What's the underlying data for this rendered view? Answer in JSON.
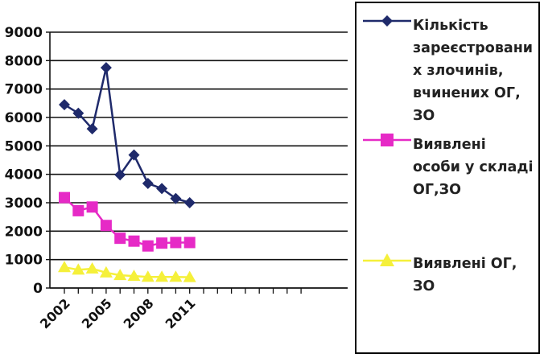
{
  "chart_data": {
    "type": "line",
    "x": [
      2002,
      2003,
      2004,
      2005,
      2006,
      2007,
      2008,
      2009,
      2010,
      2011
    ],
    "xticks": [
      "2002",
      "2005",
      "2008",
      "2011"
    ],
    "xrange": [
      2002,
      2019
    ],
    "ylim": [
      0,
      9000
    ],
    "yticks": [
      "0",
      "1000",
      "2000",
      "3000",
      "4000",
      "5000",
      "6000",
      "7000",
      "8000",
      "9000"
    ],
    "grid": "horizontal",
    "legend_position": "right",
    "series": [
      {
        "name": "Кількість зареєстровани х злочинів, вчинених ОГ, ЗО",
        "color": "#1f2a6b",
        "marker": "diamond",
        "values": [
          6450,
          6150,
          5600,
          7750,
          3980,
          4680,
          3680,
          3500,
          3150,
          3000
        ]
      },
      {
        "name": "Виявлені особи у складі ОГ,ЗО",
        "color": "#e62ac6",
        "marker": "square",
        "values": [
          3180,
          2720,
          2850,
          2200,
          1750,
          1650,
          1480,
          1580,
          1600,
          1600
        ]
      },
      {
        "name": "Виявлені ОГ, ЗО",
        "color": "#f5f03a",
        "marker": "triangle",
        "values": [
          730,
          640,
          680,
          540,
          450,
          420,
          390,
          390,
          390,
          380
        ]
      }
    ]
  },
  "legend": {
    "series1": [
      "Кількість",
      "зареєстровани",
      "х злочинів,",
      "вчинених ОГ,",
      "ЗО"
    ],
    "series2": [
      "Виявлені",
      "особи у складі",
      "ОГ,ЗО"
    ],
    "series3": [
      "Виявлені ОГ,",
      "ЗО"
    ]
  }
}
